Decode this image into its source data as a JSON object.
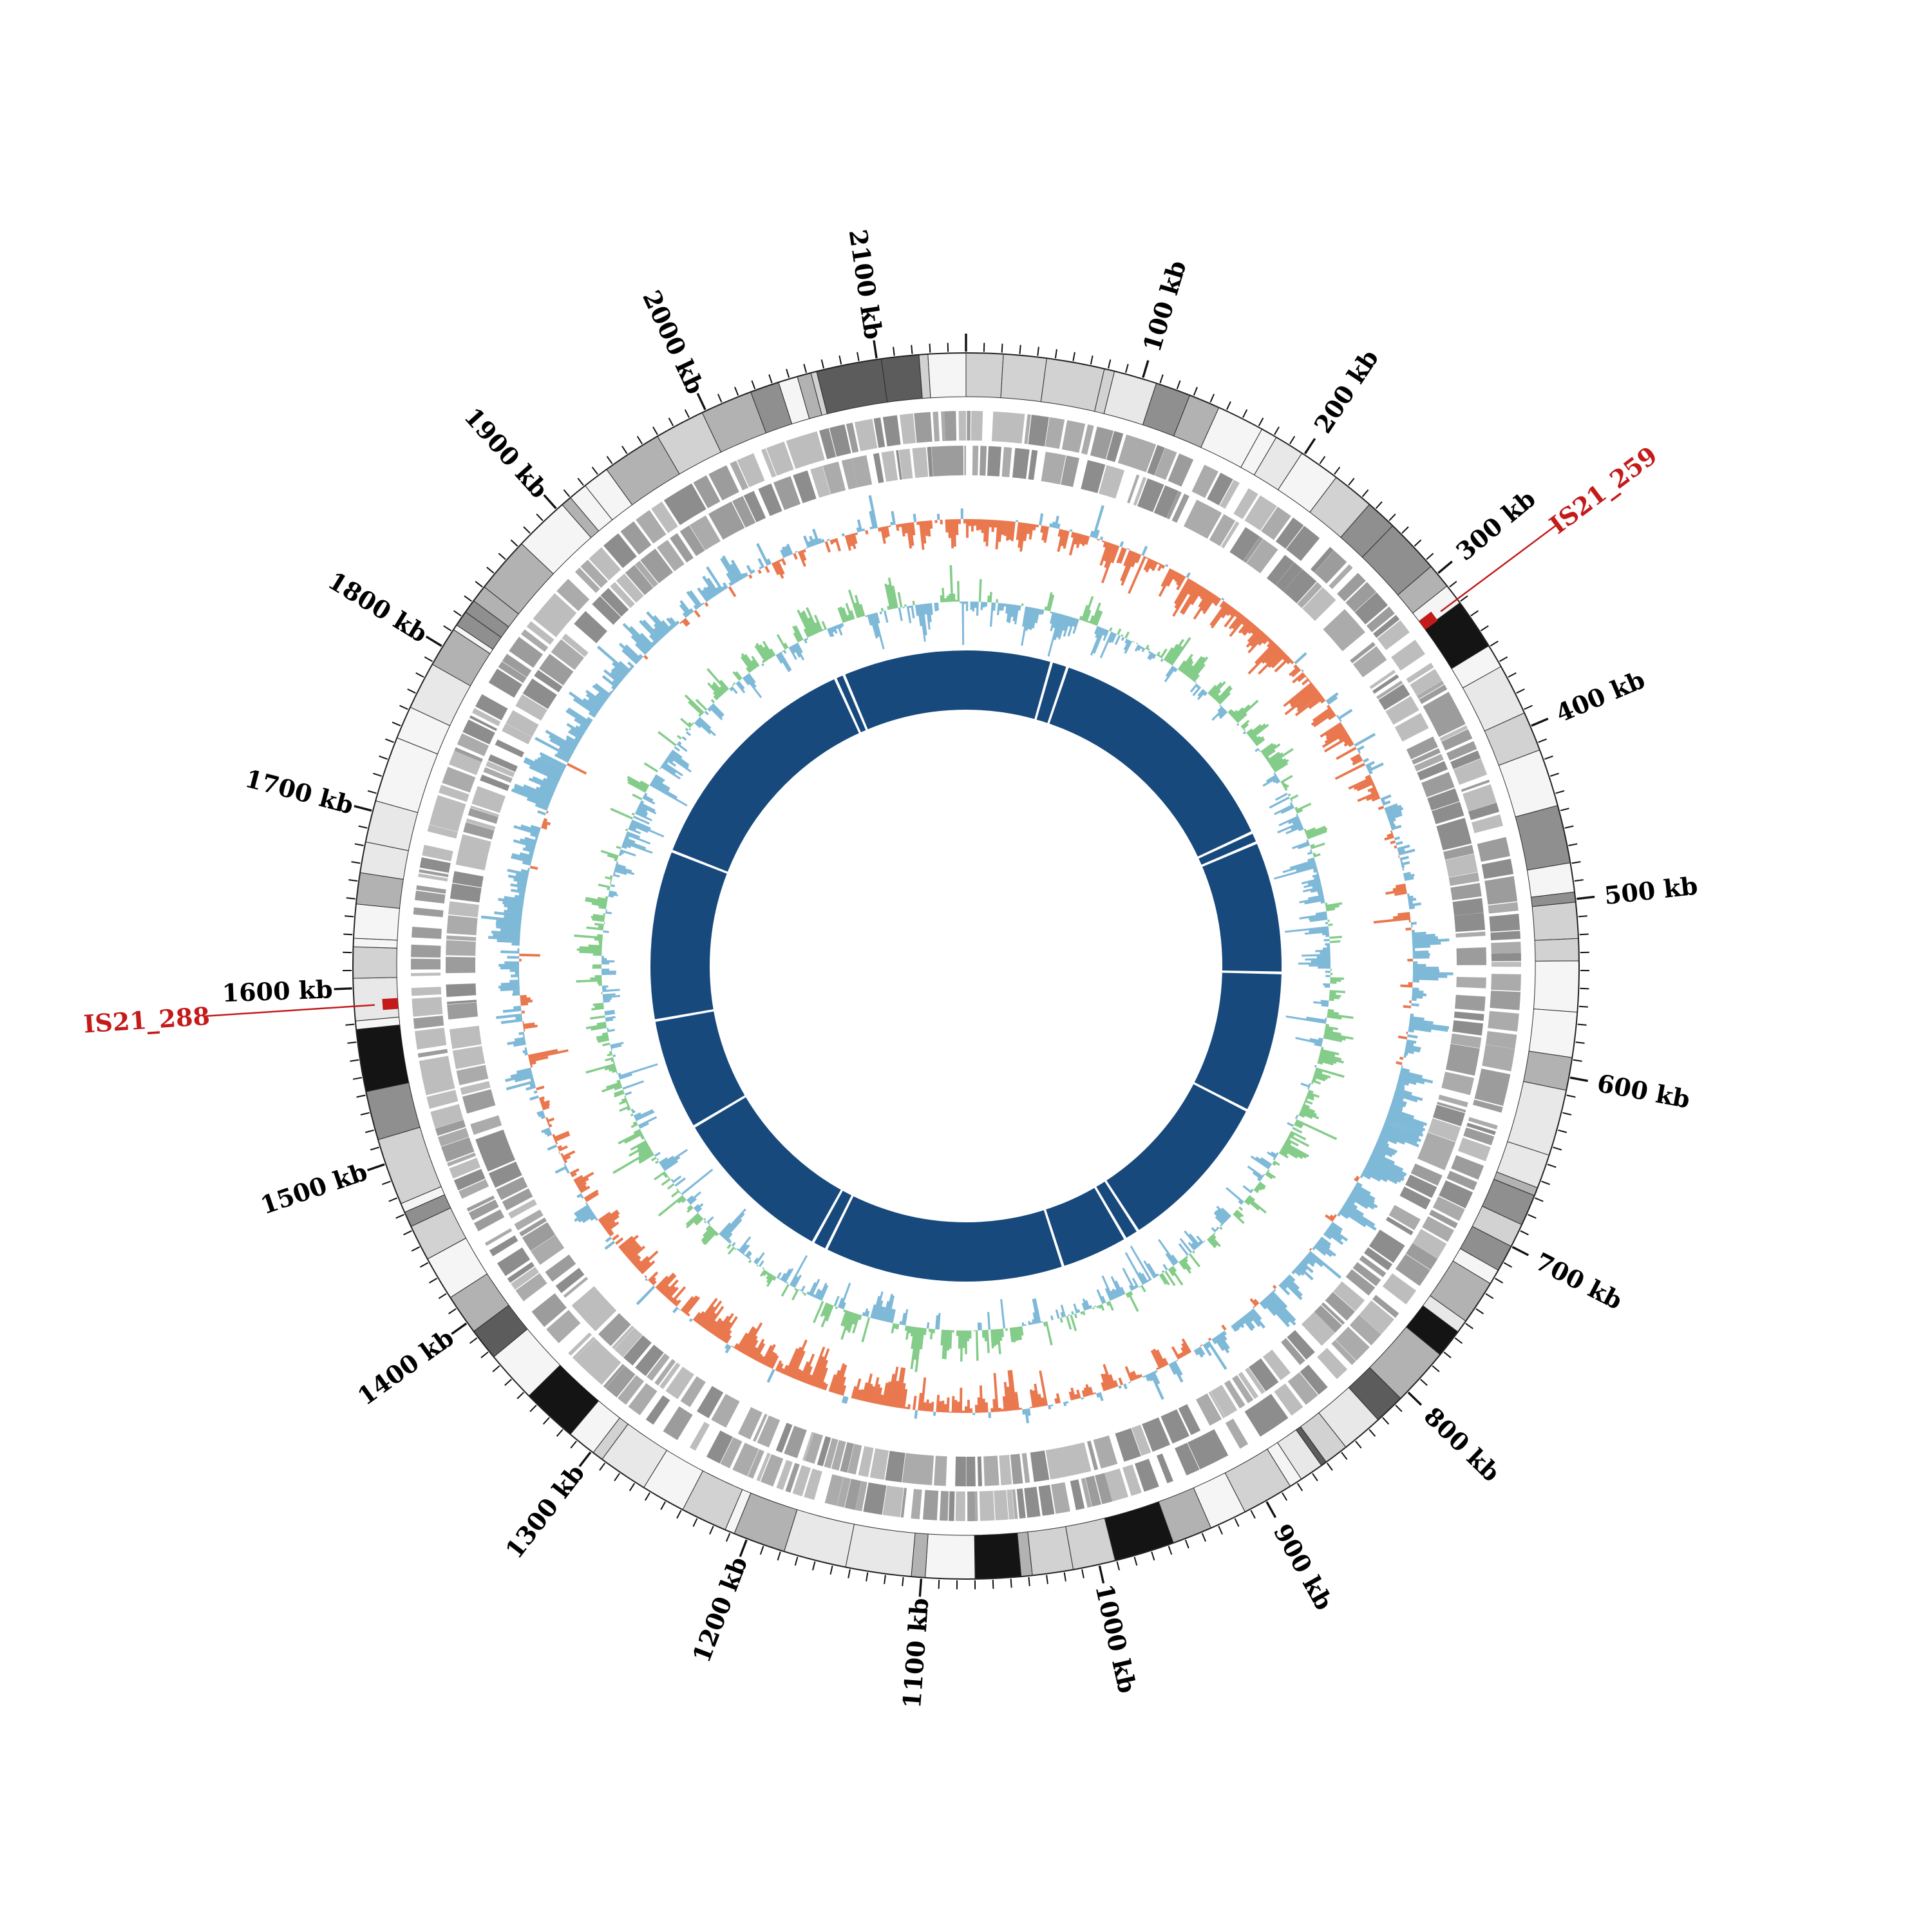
{
  "page": {
    "background_color": "#ffffff"
  },
  "chart_data": {
    "type": "circular-genome-map",
    "title": "",
    "genome_length_kb": 2150,
    "unit": "kb",
    "ticks": {
      "minor_interval_kb": 10,
      "major_interval_kb": 100,
      "labels": [
        "100 kb",
        "200 kb",
        "300 kb",
        "400 kb",
        "500 kb",
        "600 kb",
        "700 kb",
        "800 kb",
        "900 kb",
        "1000 kb",
        "1100 kb",
        "1200 kb",
        "1300 kb",
        "1400 kb",
        "1500 kb",
        "1600 kb",
        "1700 kb",
        "1800 kb",
        "1900 kb",
        "2000 kb",
        "2100 kb"
      ]
    },
    "features": [
      {
        "name": "IS21_259",
        "position_kb": 318,
        "color": "#c41a1a"
      },
      {
        "name": "IS21_288",
        "position_kb": 1590,
        "color": "#c41a1a"
      }
    ],
    "rings": [
      {
        "id": "contig-bands",
        "label": "grayscale contig/region blocks",
        "r_inner": 884,
        "r_outer": 952,
        "outline": "#2b2b2b",
        "palette": [
          "#f5f5f5",
          "#e8e8e8",
          "#d2d2d2",
          "#b2b2b2",
          "#8f8f8f",
          "#5c5c5c",
          "#141414"
        ],
        "seed": 11,
        "min_seg_kb": 3,
        "max_seg_kb": 38
      },
      {
        "id": "cds-forward",
        "label": "CDS forward strand",
        "r_inner": 816,
        "r_outer": 862,
        "palette": [
          "#8d8d8d",
          "#9c9c9c",
          "#ababab",
          "#bdbdbd"
        ],
        "seed": 23
      },
      {
        "id": "cds-reverse",
        "label": "CDS reverse strand",
        "r_inner": 762,
        "r_outer": 808,
        "palette": [
          "#8d8d8d",
          "#9c9c9c",
          "#ababab",
          "#bdbdbd"
        ],
        "seed": 57
      },
      {
        "id": "gc-skew",
        "label": "GC skew (blue positive / orange negative)",
        "baseline_r": 694,
        "amplitude": 58,
        "bin_kb": 2,
        "positive_color": "#7fb9d8",
        "negative_color": "#e9784f",
        "seed": 91,
        "wave_period_kb": 1075,
        "wave_phase_kb": 420,
        "wave_amp": 0.45
      },
      {
        "id": "gc-content",
        "label": "GC content deviation (green positive / blue negative)",
        "baseline_r": 566,
        "amplitude": 64,
        "bin_kb": 2,
        "positive_color": "#84cc8a",
        "negative_color": "#7fb9d8",
        "seed": 143,
        "wave_period_kb": 430,
        "wave_phase_kb": 140,
        "wave_amp": 0.18
      },
      {
        "id": "reference",
        "label": "reference/coverage ring",
        "r_inner": 398,
        "r_outer": 490,
        "color": "#17497d",
        "gap_width_kb": 3,
        "gap_positions_kb": [
          94,
          112,
          388,
          400,
          545,
          700,
          878,
          894,
          968,
          1232,
          1248,
          1430,
          1553,
          1740,
          2004,
          2014
        ]
      }
    ],
    "layout": {
      "size": 3000,
      "center": 1500,
      "label_radius": 1070,
      "tick_base_radius": 952,
      "minor_tick_len": 16,
      "major_tick_len": 30,
      "feature_mark_r_inner": 884,
      "feature_mark_r_outer": 908,
      "feature_mark_width_kb": 6.5,
      "feature_label_radius": {
        "IS21_259": 1235,
        "IS21_288": 1275
      }
    }
  }
}
